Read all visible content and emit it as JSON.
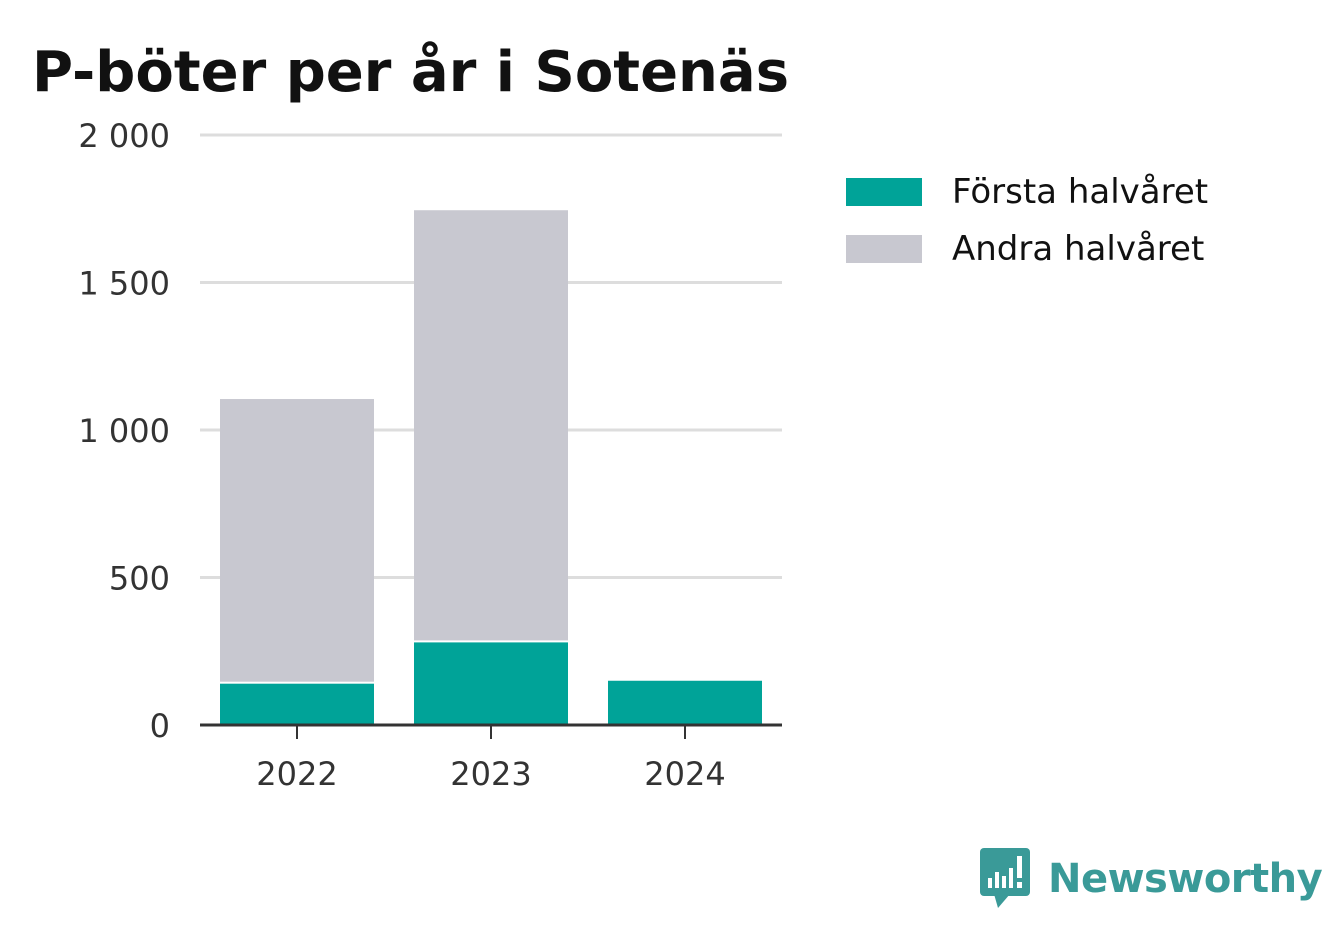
{
  "chart_data": {
    "type": "bar",
    "stacked": true,
    "title": "P-böter per år i Sotenäs",
    "categories": [
      "2022",
      "2023",
      "2024"
    ],
    "series": [
      {
        "name": "Första halvåret",
        "color": "#00a398",
        "values": [
          140,
          280,
          150
        ]
      },
      {
        "name": "Andra halvåret",
        "color": "#c8c8d0",
        "values": [
          965,
          1465,
          0
        ]
      }
    ],
    "ylim": [
      0,
      2000
    ],
    "yticks": [
      0,
      500,
      1000,
      1500,
      2000
    ],
    "ytick_labels": [
      "0",
      "500",
      "1 000",
      "1 500",
      "2 000"
    ],
    "xlabel": "",
    "ylabel": "",
    "grid": true,
    "legend_position": "right"
  },
  "legend": {
    "items": [
      {
        "label": "Första halvåret",
        "color": "#00a398"
      },
      {
        "label": "Andra halvåret",
        "color": "#c8c8d0"
      }
    ]
  },
  "brand": {
    "name": "Newsworthy",
    "icon": "newsworthy-logo-icon",
    "color": "#3a9a98"
  }
}
